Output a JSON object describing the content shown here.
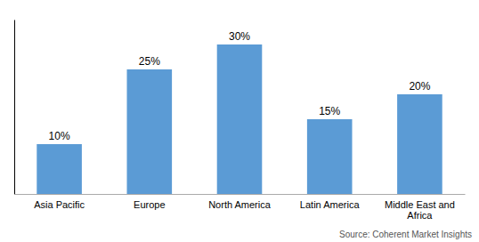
{
  "chart_data": {
    "type": "bar",
    "categories": [
      "Asia Pacific",
      "Europe",
      "North America",
      "Latin America",
      "Middle East and\nAfrica"
    ],
    "values": [
      10,
      25,
      30,
      15,
      20
    ],
    "value_labels": [
      "10%",
      "25%",
      "30%",
      "15%",
      "20%"
    ],
    "color": "#5B9BD5",
    "ylim": [
      0,
      35
    ],
    "yticks": [],
    "data_labels": true,
    "tick_labels": "x",
    "grid": false,
    "annotations": [
      "Source: Coherent Market Insights"
    ]
  }
}
